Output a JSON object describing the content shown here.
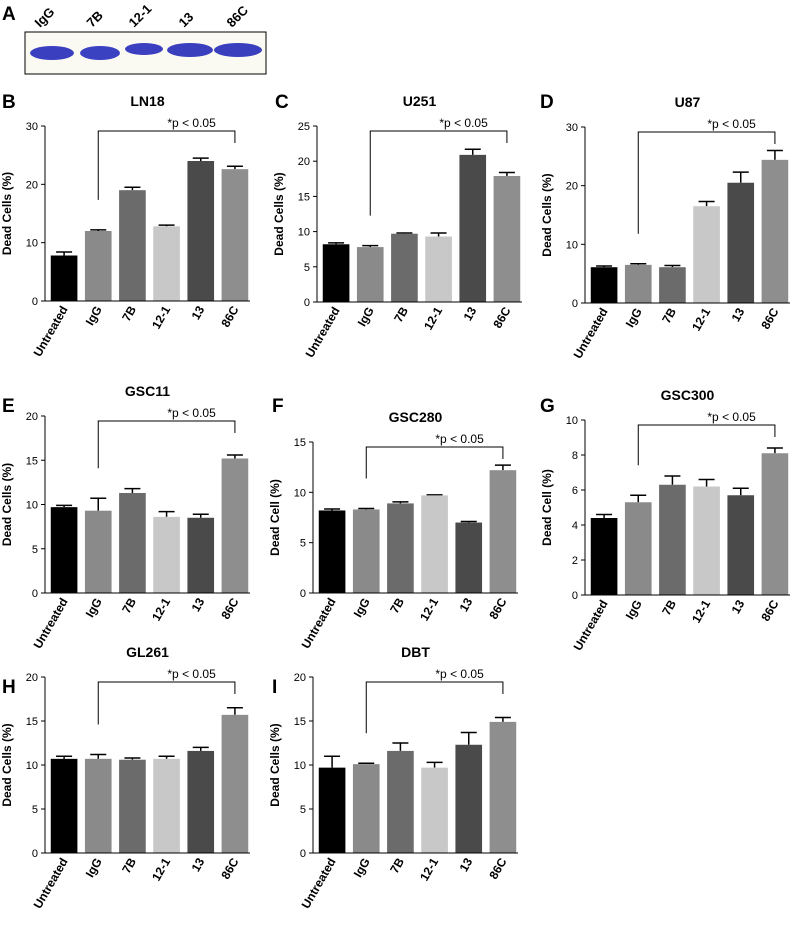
{
  "panel_a": {
    "panel": "A",
    "lanes": [
      "IgG",
      "7B",
      "12-1",
      "13",
      "86C"
    ]
  },
  "chart_data": [
    {
      "type": "bar",
      "panel": "B",
      "title": "LN18",
      "ylabel": "Dead Cells (%)",
      "annotation": "*p < 0.05",
      "categories": [
        "Untreated",
        "IgG",
        "7B",
        "12-1",
        "13",
        "86C"
      ],
      "values": [
        7.8,
        12,
        19,
        12.8,
        24,
        22.6
      ],
      "errors": [
        0.6,
        0.2,
        0.5,
        0.2,
        0.5,
        0.5
      ],
      "colors": [
        "#000000",
        "#8a8a8a",
        "#6b6b6b",
        "#c8c8c8",
        "#4a4a4a",
        "#8e8e8e"
      ],
      "ylim": [
        0,
        30
      ],
      "yticks": [
        0,
        10,
        20,
        30
      ]
    },
    {
      "type": "bar",
      "panel": "C",
      "title": "U251",
      "ylabel": "Dead Cells (%)",
      "annotation": "*p < 0.05",
      "categories": [
        "Untreated",
        "IgG",
        "7B",
        "12-1",
        "13",
        "86C"
      ],
      "values": [
        8.2,
        7.8,
        9.7,
        9.3,
        20.9,
        17.9
      ],
      "errors": [
        0.2,
        0.2,
        0.1,
        0.5,
        0.8,
        0.5
      ],
      "colors": [
        "#000000",
        "#8a8a8a",
        "#6b6b6b",
        "#c8c8c8",
        "#4a4a4a",
        "#8e8e8e"
      ],
      "ylim": [
        0,
        25
      ],
      "yticks": [
        0,
        5,
        10,
        15,
        20,
        25
      ]
    },
    {
      "type": "bar",
      "panel": "D",
      "title": "U87",
      "ylabel": "Dead Cells (%)",
      "annotation": "*p < 0.05",
      "categories": [
        "Untreated",
        "IgG",
        "7B",
        "12-1",
        "13",
        "86C"
      ],
      "values": [
        6.1,
        6.5,
        6.1,
        16.5,
        20.5,
        24.4
      ],
      "errors": [
        0.2,
        0.2,
        0.3,
        0.8,
        1.8,
        1.6
      ],
      "colors": [
        "#000000",
        "#8a8a8a",
        "#6b6b6b",
        "#c8c8c8",
        "#4a4a4a",
        "#8e8e8e"
      ],
      "ylim": [
        0,
        30
      ],
      "yticks": [
        0,
        10,
        20,
        30
      ]
    },
    {
      "type": "bar",
      "panel": "E",
      "title": "GSC11",
      "ylabel": "Dead Cells (%)",
      "annotation": "*p < 0.05",
      "categories": [
        "Untreated",
        "IgG",
        "7B",
        "12-1",
        "13",
        "86C"
      ],
      "values": [
        9.7,
        9.3,
        11.3,
        8.6,
        8.5,
        15.2
      ],
      "errors": [
        0.2,
        1.4,
        0.5,
        0.6,
        0.4,
        0.4
      ],
      "colors": [
        "#000000",
        "#8a8a8a",
        "#6b6b6b",
        "#c8c8c8",
        "#4a4a4a",
        "#8e8e8e"
      ],
      "ylim": [
        0,
        20
      ],
      "yticks": [
        0,
        5,
        10,
        15,
        20
      ]
    },
    {
      "type": "bar",
      "panel": "F",
      "title": "GSC280",
      "ylabel": "Dead Cell (%)",
      "annotation": "*p < 0.05",
      "categories": [
        "Untreated",
        "IgG",
        "7B",
        "12-1",
        "13",
        "86C"
      ],
      "values": [
        8.2,
        8.3,
        8.9,
        9.7,
        7.0,
        12.2
      ],
      "errors": [
        0.15,
        0.1,
        0.15,
        0.05,
        0.1,
        0.5
      ],
      "colors": [
        "#000000",
        "#8a8a8a",
        "#6b6b6b",
        "#c8c8c8",
        "#4a4a4a",
        "#8e8e8e"
      ],
      "ylim": [
        0,
        15
      ],
      "yticks": [
        0,
        5,
        10,
        15
      ]
    },
    {
      "type": "bar",
      "panel": "G",
      "title": "GSC300",
      "ylabel": "Dead Cell (%)",
      "annotation": "*p < 0.05",
      "categories": [
        "Untreated",
        "IgG",
        "7B",
        "12-1",
        "13",
        "86C"
      ],
      "values": [
        4.4,
        5.3,
        6.3,
        6.2,
        5.7,
        8.1
      ],
      "errors": [
        0.2,
        0.4,
        0.5,
        0.4,
        0.4,
        0.3
      ],
      "colors": [
        "#000000",
        "#8a8a8a",
        "#6b6b6b",
        "#c8c8c8",
        "#4a4a4a",
        "#8e8e8e"
      ],
      "ylim": [
        0,
        10
      ],
      "yticks": [
        0,
        2,
        4,
        6,
        8,
        10
      ]
    },
    {
      "type": "bar",
      "panel": "H",
      "title": "GL261",
      "ylabel": "Dead Cells (%)",
      "annotation": "*p < 0.05",
      "categories": [
        "Untreated",
        "IgG",
        "7B",
        "12-1",
        "13",
        "86C"
      ],
      "values": [
        10.7,
        10.7,
        10.6,
        10.7,
        11.6,
        15.7
      ],
      "errors": [
        0.3,
        0.5,
        0.2,
        0.3,
        0.4,
        0.8
      ],
      "colors": [
        "#000000",
        "#8a8a8a",
        "#6b6b6b",
        "#c8c8c8",
        "#4a4a4a",
        "#8e8e8e"
      ],
      "ylim": [
        0,
        20
      ],
      "yticks": [
        0,
        5,
        10,
        15,
        20
      ]
    },
    {
      "type": "bar",
      "panel": "I",
      "title": "DBT",
      "ylabel": "Dead Cells (%)",
      "annotation": "*p < 0.05",
      "categories": [
        "Untreated",
        "IgG",
        "7B",
        "12-1",
        "13",
        "86C"
      ],
      "values": [
        9.7,
        10.1,
        11.6,
        9.7,
        12.3,
        14.9
      ],
      "errors": [
        1.3,
        0.1,
        0.9,
        0.6,
        1.4,
        0.5
      ],
      "colors": [
        "#000000",
        "#8a8a8a",
        "#6b6b6b",
        "#c8c8c8",
        "#4a4a4a",
        "#8e8e8e"
      ],
      "ylim": [
        0,
        20
      ],
      "yticks": [
        0,
        5,
        10,
        15,
        20
      ]
    }
  ]
}
